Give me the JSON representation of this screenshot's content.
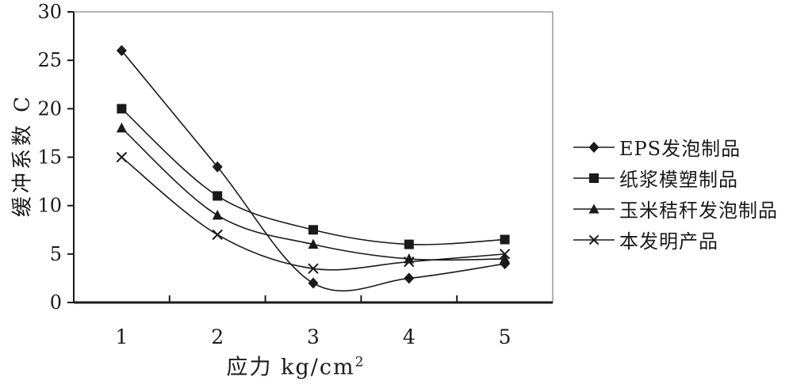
{
  "chart_data": {
    "type": "line",
    "title": "",
    "xlabel": "应力 kg/cm²",
    "xlabel_base": "应力 kg/cm",
    "xlabel_sup": "2",
    "ylabel": "缓冲系数 C",
    "categories": [
      "1",
      "2",
      "3",
      "4",
      "5"
    ],
    "yticks": [
      "0",
      "5",
      "10",
      "15",
      "20",
      "25",
      "30"
    ],
    "ylim": [
      0,
      30
    ],
    "series": [
      {
        "name": "EPS发泡制品",
        "marker": "diamond",
        "values": [
          26,
          14,
          2,
          2.5,
          4
        ]
      },
      {
        "name": "纸浆模塑制品",
        "marker": "square",
        "values": [
          20,
          11,
          7.5,
          6,
          6.5
        ]
      },
      {
        "name": "玉米秸秆发泡制品",
        "marker": "triangle",
        "values": [
          18,
          9,
          6,
          4.5,
          4.5
        ]
      },
      {
        "name": "本发明产品",
        "marker": "x",
        "values": [
          15,
          7,
          3.5,
          4.2,
          5
        ]
      }
    ],
    "grid": false,
    "legend_position": "right",
    "smoothed": true,
    "line_color": "#1a1a1a",
    "plot_border_color": "#9c9c9c",
    "background_color": "#ffffff"
  }
}
